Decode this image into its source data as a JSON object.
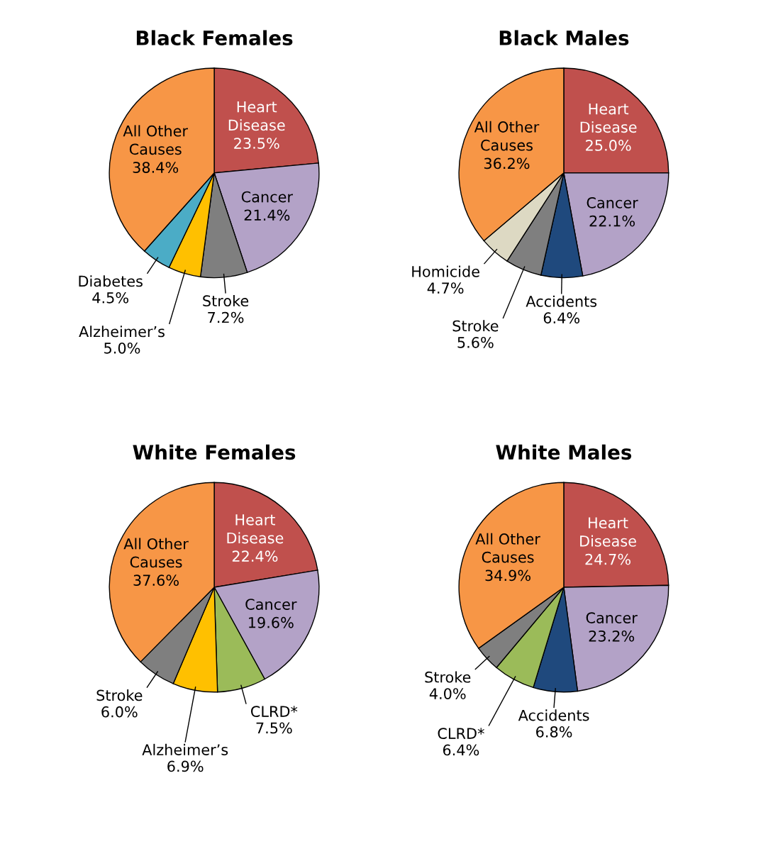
{
  "chart_data": [
    {
      "type": "pie",
      "title": "Black Females",
      "categories": [
        "Heart Disease",
        "Cancer",
        "Stroke",
        "Alzheimer’s",
        "Diabetes",
        "All Other Causes"
      ],
      "values": [
        23.5,
        21.4,
        7.2,
        5.0,
        4.5,
        38.4
      ],
      "value_labels": [
        "23.5%",
        "21.4%",
        "7.2%",
        "5.0%",
        "4.5%",
        "38.4%"
      ],
      "colors": [
        "#c0504d",
        "#b3a2c7",
        "#7f7f7f",
        "#ffc000",
        "#4bacc6",
        "#f79646"
      ],
      "legend": false
    },
    {
      "type": "pie",
      "title": "Black Males",
      "categories": [
        "Heart Disease",
        "Cancer",
        "Accidents",
        "Stroke",
        "Homicide",
        "All Other Causes"
      ],
      "values": [
        25.0,
        22.1,
        6.4,
        5.6,
        4.7,
        36.2
      ],
      "value_labels": [
        "25.0%",
        "22.1%",
        "6.4%",
        "5.6%",
        "4.7%",
        "36.2%"
      ],
      "colors": [
        "#c0504d",
        "#b3a2c7",
        "#1f497d",
        "#7f7f7f",
        "#ddd9c3",
        "#f79646"
      ],
      "legend": false
    },
    {
      "type": "pie",
      "title": "White Females",
      "categories": [
        "Heart Disease",
        "Cancer",
        "CLRD*",
        "Alzheimer’s",
        "Stroke",
        "All Other Causes"
      ],
      "values": [
        22.4,
        19.6,
        7.5,
        6.9,
        6.0,
        37.6
      ],
      "value_labels": [
        "22.4%",
        "19.6%",
        "7.5%",
        "6.9%",
        "6.0%",
        "37.6%"
      ],
      "colors": [
        "#c0504d",
        "#b3a2c7",
        "#9bbb59",
        "#ffc000",
        "#7f7f7f",
        "#f79646"
      ],
      "legend": false
    },
    {
      "type": "pie",
      "title": "White Males",
      "categories": [
        "Heart Disease",
        "Cancer",
        "Accidents",
        "CLRD*",
        "Stroke",
        "All Other Causes"
      ],
      "values": [
        24.7,
        23.2,
        6.8,
        6.4,
        4.0,
        34.9
      ],
      "value_labels": [
        "24.7%",
        "23.2%",
        "6.8%",
        "6.4%",
        "4.0%",
        "34.9%"
      ],
      "colors": [
        "#c0504d",
        "#b3a2c7",
        "#1f497d",
        "#9bbb59",
        "#7f7f7f",
        "#f79646"
      ],
      "legend": false
    }
  ]
}
